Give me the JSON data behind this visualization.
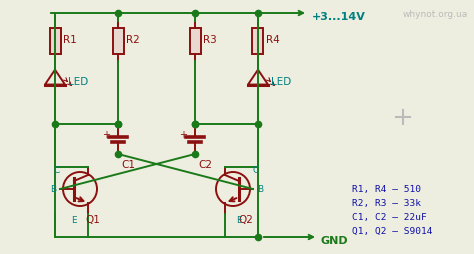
{
  "bg_color": "#eeeee0",
  "dark_red": "#8b1010",
  "green": "#1a7a1a",
  "teal": "#008080",
  "blue": "#1010aa",
  "gray": "#bbbbbb",
  "title": "whynot.org.ua",
  "voltage_label": "+3...14V",
  "gnd_label": "GND",
  "component_labels": [
    "R1",
    "R2",
    "R3",
    "R4"
  ],
  "led_labels": [
    "LED",
    "LED"
  ],
  "cap_labels": [
    "C1",
    "C2"
  ],
  "transistor_labels": [
    "Q1",
    "Q2"
  ],
  "bom_lines": [
    "R1, R4 – 510",
    "R2, R3 – 33k",
    "C1, C2 – 22uF",
    "Q1, Q2 – S9014"
  ]
}
